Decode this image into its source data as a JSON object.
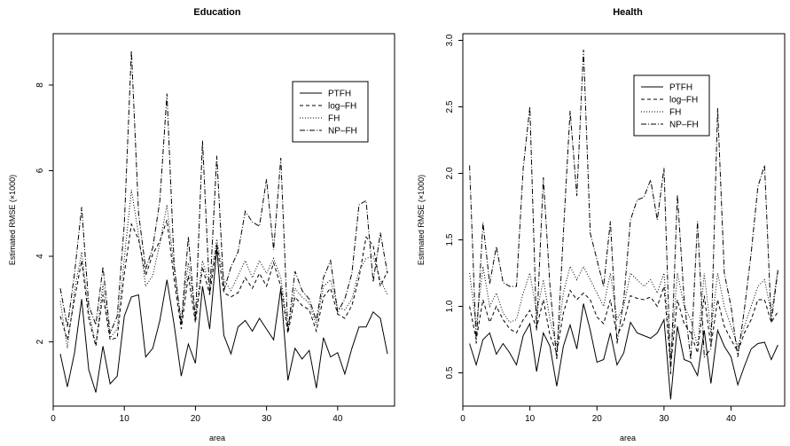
{
  "chart_data": [
    {
      "type": "line",
      "title": "Education",
      "xlabel": "area",
      "ylabel": "Estimated RMSE (×1000)",
      "xlim": [
        0,
        48
      ],
      "ylim": [
        0.5,
        9.2
      ],
      "xticks": [
        "0",
        "10",
        "20",
        "30",
        "40"
      ],
      "yticks": [
        "2",
        "4",
        "6",
        "8"
      ],
      "legend_position": "top-right",
      "series": [
        {
          "name": "PTFH",
          "dash": "solid",
          "values": [
            1.72,
            0.95,
            1.75,
            3.0,
            1.35,
            0.82,
            1.9,
            1.02,
            1.2,
            2.6,
            3.05,
            3.1,
            1.65,
            1.85,
            2.5,
            3.45,
            2.4,
            1.2,
            1.95,
            1.5,
            3.3,
            2.3,
            4.2,
            2.15,
            1.72,
            2.35,
            2.5,
            2.25,
            2.55,
            2.3,
            2.05,
            3.25,
            1.1,
            1.85,
            1.6,
            1.8,
            0.92,
            2.1,
            1.65,
            1.75,
            1.25,
            1.85,
            2.35,
            2.35,
            2.7,
            2.55,
            1.72
          ]
        },
        {
          "name": "log–FH",
          "dash": "dashed",
          "values": [
            2.6,
            2.05,
            3.0,
            3.9,
            2.55,
            1.9,
            3.1,
            2.05,
            2.1,
            3.6,
            4.75,
            4.4,
            3.55,
            4.05,
            4.35,
            4.85,
            3.45,
            2.3,
            3.55,
            2.45,
            3.75,
            3.1,
            4.3,
            3.15,
            3.05,
            3.15,
            3.5,
            3.25,
            3.6,
            3.3,
            3.85,
            3.3,
            2.2,
            3.05,
            2.85,
            2.75,
            2.25,
            3.05,
            3.25,
            2.65,
            2.55,
            2.85,
            3.5,
            4.45,
            4.25,
            3.3,
            3.65
          ]
        },
        {
          "name": "FH",
          "dash": "dotted",
          "values": [
            2.95,
            1.85,
            3.2,
            4.1,
            2.7,
            1.95,
            3.35,
            2.1,
            2.3,
            3.95,
            5.55,
            4.5,
            3.3,
            3.55,
            4.3,
            5.2,
            3.7,
            2.5,
            3.85,
            2.6,
            3.9,
            3.3,
            4.4,
            3.45,
            3.2,
            3.55,
            3.9,
            3.5,
            3.9,
            3.6,
            3.95,
            3.5,
            2.3,
            3.25,
            3.05,
            2.9,
            2.4,
            3.3,
            3.45,
            2.8,
            2.75,
            3.0,
            3.65,
            3.95,
            4.0,
            3.45,
            3.1
          ]
        },
        {
          "name": "NP–FH",
          "dash": "dashdot",
          "values": [
            3.25,
            2.35,
            3.6,
            5.15,
            2.85,
            2.4,
            3.75,
            2.2,
            2.6,
            4.75,
            8.8,
            5.0,
            3.7,
            4.2,
            5.3,
            7.8,
            3.8,
            2.4,
            4.45,
            2.5,
            6.7,
            3.1,
            6.35,
            3.2,
            3.75,
            4.1,
            5.05,
            4.8,
            4.7,
            5.8,
            4.15,
            6.3,
            2.25,
            3.65,
            3.2,
            3.0,
            2.5,
            3.5,
            3.9,
            2.7,
            3.0,
            3.6,
            5.2,
            5.3,
            3.4,
            4.55,
            3.6
          ]
        }
      ]
    },
    {
      "type": "line",
      "title": "Health",
      "xlabel": "area",
      "ylabel": "Estimated RMSE (×1000)",
      "xlim": [
        0,
        48
      ],
      "ylim": [
        0.25,
        3.05
      ],
      "xticks": [
        "0",
        "10",
        "20",
        "30",
        "40"
      ],
      "yticks": [
        "0.5",
        "1.0",
        "1.5",
        "2.0",
        "2.5",
        "3.0"
      ],
      "legend_position": "top-right",
      "series": [
        {
          "name": "PTFH",
          "dash": "solid",
          "values": [
            0.72,
            0.56,
            0.75,
            0.8,
            0.64,
            0.72,
            0.65,
            0.56,
            0.78,
            0.87,
            0.51,
            0.8,
            0.7,
            0.4,
            0.7,
            0.86,
            0.68,
            1.02,
            0.82,
            0.58,
            0.6,
            0.8,
            0.56,
            0.65,
            0.88,
            0.8,
            0.78,
            0.76,
            0.8,
            0.9,
            0.3,
            0.85,
            0.6,
            0.58,
            0.48,
            0.82,
            0.42,
            0.82,
            0.7,
            0.62,
            0.41,
            0.55,
            0.68,
            0.72,
            0.73,
            0.6,
            0.71
          ]
        },
        {
          "name": "log–FH",
          "dash": "dashed",
          "values": [
            1.0,
            0.75,
            1.05,
            0.88,
            1.0,
            0.9,
            0.83,
            0.8,
            0.9,
            0.97,
            0.84,
            1.05,
            0.78,
            0.65,
            0.95,
            1.12,
            1.05,
            1.1,
            1.05,
            0.92,
            0.87,
            1.05,
            0.78,
            0.88,
            1.08,
            1.06,
            1.05,
            1.07,
            1.0,
            1.15,
            0.55,
            1.05,
            0.87,
            0.8,
            0.65,
            1.08,
            0.7,
            1.05,
            0.85,
            0.75,
            0.66,
            0.8,
            0.9,
            1.05,
            1.05,
            0.88,
            0.96
          ]
        },
        {
          "name": "FH",
          "dash": "dotted",
          "values": [
            1.25,
            0.85,
            1.3,
            1.0,
            1.1,
            0.95,
            0.88,
            0.9,
            1.1,
            1.25,
            0.95,
            1.2,
            0.9,
            0.7,
            1.1,
            1.3,
            1.2,
            1.3,
            1.2,
            1.1,
            1.0,
            1.25,
            0.9,
            1.0,
            1.25,
            1.2,
            1.15,
            1.2,
            1.1,
            1.25,
            0.6,
            1.25,
            1.0,
            0.9,
            0.7,
            1.25,
            0.8,
            1.25,
            1.0,
            0.85,
            0.7,
            0.85,
            1.0,
            1.15,
            1.2,
            0.95,
            1.28
          ]
        },
        {
          "name": "NP–FH",
          "dash": "dashdot",
          "values": [
            2.06,
            0.72,
            1.63,
            1.17,
            1.45,
            1.18,
            1.15,
            1.15,
            2.04,
            2.5,
            0.82,
            1.97,
            1.15,
            0.6,
            1.55,
            2.47,
            1.83,
            2.93,
            1.55,
            1.35,
            1.15,
            1.64,
            0.72,
            1.05,
            1.65,
            1.8,
            1.82,
            1.95,
            1.65,
            2.04,
            0.49,
            1.84,
            1.05,
            0.6,
            1.64,
            0.62,
            0.68,
            2.49,
            1.25,
            1.0,
            0.62,
            0.98,
            1.4,
            1.9,
            2.06,
            0.88,
            1.27
          ]
        }
      ]
    }
  ]
}
